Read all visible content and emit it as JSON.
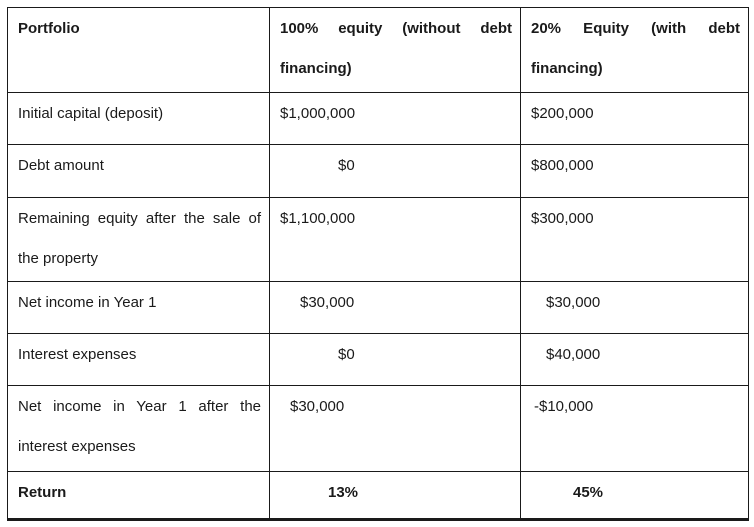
{
  "table": {
    "columns": [
      {
        "header": "Portfolio"
      },
      {
        "header": "100% equity (without debt financing)"
      },
      {
        "header": "20% Equity (with debt financing)"
      }
    ],
    "rows": [
      {
        "label": "Initial capital (deposit)",
        "equity100": "$1,000,000",
        "equity20": "$200,000"
      },
      {
        "label": "Debt amount",
        "equity100": "$0",
        "equity20": "$800,000"
      },
      {
        "label": "Remaining equity after the sale of the property",
        "equity100": "$1,100,000",
        "equity20": "$300,000"
      },
      {
        "label": "Net income in Year 1",
        "equity100": "$30,000",
        "equity20": "$30,000"
      },
      {
        "label": "Interest expenses",
        "equity100": "$0",
        "equity20": "$40,000"
      },
      {
        "label": "Net income in Year 1 after the interest expenses",
        "equity100": "$30,000",
        "equity20": "-$10,000"
      },
      {
        "label": "Return",
        "equity100": "13%",
        "equity20": "45%"
      }
    ],
    "colors": {
      "text": "#1a1a1a",
      "border": "#1a1a1a",
      "background": "#ffffff"
    }
  }
}
